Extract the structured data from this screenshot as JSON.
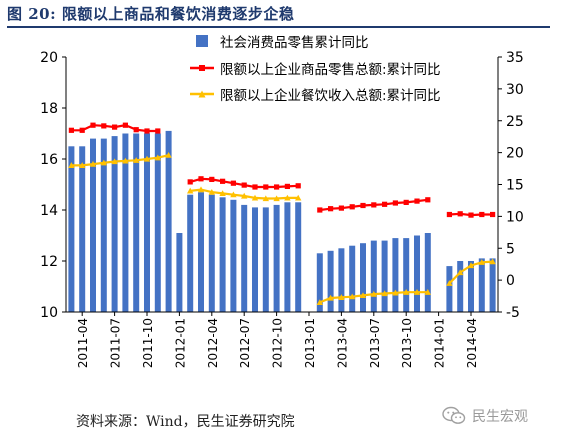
{
  "figure": {
    "title": "图 20:   限额以上商品和餐饮消费逐步企稳",
    "source": "资料来源：Wind，民生证券研究院",
    "watermark": "民生宏观"
  },
  "colors": {
    "title": "#1f3a6e",
    "bars": "#4472c4",
    "retail_line": "#ff0000",
    "catering_line": "#ffc000"
  },
  "chart_data": {
    "type": "bar",
    "xlabel": "",
    "ylabel": "",
    "x_tick_labels": [
      "2011-04",
      "2011-07",
      "2011-10",
      "2012-01",
      "2012-04",
      "2012-07",
      "2012-10",
      "2013-01",
      "2013-04",
      "2013-07",
      "2013-10",
      "2014-01",
      "2014-04"
    ],
    "categories": [
      "2011-03",
      "2011-04",
      "2011-05",
      "2011-06",
      "2011-07",
      "2011-08",
      "2011-09",
      "2011-10",
      "2011-11",
      "2011-12",
      "2012-01",
      "2012-02",
      "2012-03",
      "2012-04",
      "2012-05",
      "2012-06",
      "2012-07",
      "2012-08",
      "2012-09",
      "2012-10",
      "2012-11",
      "2012-12",
      "2013-01",
      "2013-02",
      "2013-03",
      "2013-04",
      "2013-05",
      "2013-06",
      "2013-07",
      "2013-08",
      "2013-09",
      "2013-10",
      "2013-11",
      "2013-12",
      "2014-01",
      "2014-02",
      "2014-03",
      "2014-04",
      "2014-05",
      "2014-06"
    ],
    "y_left": {
      "min": 10,
      "max": 20,
      "ticks": [
        10,
        12,
        14,
        16,
        18,
        20
      ]
    },
    "y_right": {
      "min": -5,
      "max": 35,
      "ticks": [
        -5,
        0,
        5,
        10,
        15,
        20,
        25,
        30,
        35
      ]
    },
    "legend_position": "top-right",
    "grid": false,
    "series": [
      {
        "name": "社会消费品零售累计同比",
        "type": "bar",
        "axis": "left",
        "values": [
          16.5,
          16.5,
          16.8,
          16.8,
          16.9,
          17.0,
          17.0,
          17.0,
          17.0,
          17.1,
          13.1,
          14.6,
          14.7,
          14.6,
          14.5,
          14.4,
          14.2,
          14.1,
          14.1,
          14.2,
          14.3,
          14.3,
          null,
          12.3,
          12.4,
          12.5,
          12.6,
          12.7,
          12.8,
          12.8,
          12.9,
          12.9,
          13.0,
          13.1,
          null,
          11.8,
          12.0,
          12.0,
          12.1,
          12.1
        ]
      },
      {
        "name": "限额以上企业商品零售总额:累计同比",
        "type": "line",
        "axis": "right",
        "values": [
          23.5,
          23.5,
          24.3,
          24.2,
          24.0,
          24.3,
          23.6,
          23.4,
          23.4,
          null,
          null,
          15.4,
          15.9,
          15.8,
          15.5,
          15.2,
          14.9,
          14.6,
          14.6,
          14.6,
          14.7,
          14.8,
          null,
          11.0,
          11.2,
          11.3,
          11.5,
          11.7,
          11.8,
          11.9,
          12.1,
          12.2,
          12.4,
          12.6,
          null,
          10.3,
          10.4,
          10.2,
          10.3,
          10.3
        ]
      },
      {
        "name": "限额以上企业餐饮收入总额:累计同比",
        "type": "line",
        "axis": "right",
        "values": [
          18.0,
          18.0,
          18.2,
          18.4,
          18.6,
          18.7,
          18.8,
          19.0,
          19.2,
          19.6,
          null,
          14.0,
          14.2,
          13.8,
          13.6,
          13.4,
          13.2,
          12.9,
          12.8,
          12.8,
          12.9,
          12.9,
          null,
          -3.5,
          -2.8,
          -2.7,
          -2.6,
          -2.4,
          -2.2,
          -2.1,
          -2.0,
          -1.9,
          -1.9,
          -1.9,
          null,
          -0.5,
          1.2,
          2.3,
          2.8,
          2.9
        ]
      }
    ]
  }
}
